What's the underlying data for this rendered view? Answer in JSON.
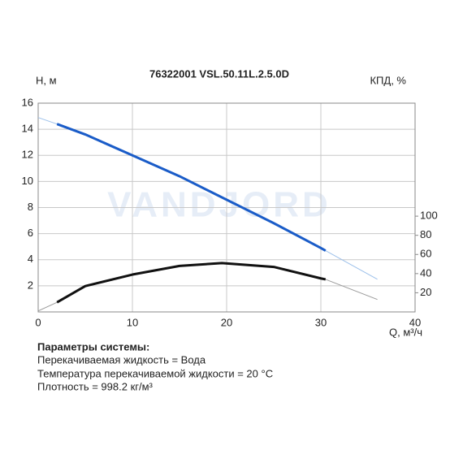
{
  "chart_data": {
    "type": "line",
    "title": "76322001 VSL.50.11L.2.5.0D",
    "y_label": "H, м",
    "y2_label": "КПД, %",
    "x_label": "Q, м³/ч",
    "watermark": "VANDJORD",
    "xlim": [
      0,
      40
    ],
    "xticks": [
      0,
      10,
      20,
      30,
      40
    ],
    "ylim": [
      0,
      16
    ],
    "yticks": [
      2,
      4,
      6,
      8,
      10,
      12,
      14,
      16
    ],
    "y2lim": [
      0,
      218
    ],
    "y2ticks": [
      20,
      40,
      60,
      80,
      100
    ],
    "grid": true,
    "series": [
      {
        "color": "#9cc0ea",
        "width": 1,
        "x": [
          0,
          2,
          5,
          10,
          15,
          20,
          25,
          30,
          30.5,
          36
        ],
        "values": [
          14.9,
          14.4,
          13.6,
          12.0,
          10.4,
          8.6,
          6.8,
          4.9,
          4.7,
          2.5
        ]
      },
      {
        "color": "#1a5cc8",
        "width": 3,
        "x": [
          2,
          5,
          10,
          15,
          20,
          25,
          30,
          30.5
        ],
        "values": [
          14.4,
          13.6,
          12.0,
          10.4,
          8.6,
          6.8,
          4.9,
          4.7
        ]
      },
      {
        "color": "#9a9a9a",
        "width": 1,
        "axis": "y2",
        "x": [
          0,
          2,
          5,
          10,
          15,
          19.5,
          25,
          30,
          30.5,
          36
        ],
        "values": [
          1,
          10,
          27,
          39,
          48,
          51,
          47,
          35,
          34,
          13
        ]
      },
      {
        "color": "#111111",
        "width": 3,
        "axis": "y2",
        "x": [
          2,
          5,
          10,
          15,
          19.5,
          25,
          30,
          30.5
        ],
        "values": [
          10,
          27,
          39,
          48,
          51,
          47,
          35,
          34
        ]
      }
    ]
  },
  "notes": {
    "heading": "Параметры системы:",
    "lines": [
      "Перекачиваемая жидкость = Вода",
      "Температура перекачиваемой жидкости = 20 °C",
      "Плотность = 998.2 кг/м³"
    ]
  }
}
